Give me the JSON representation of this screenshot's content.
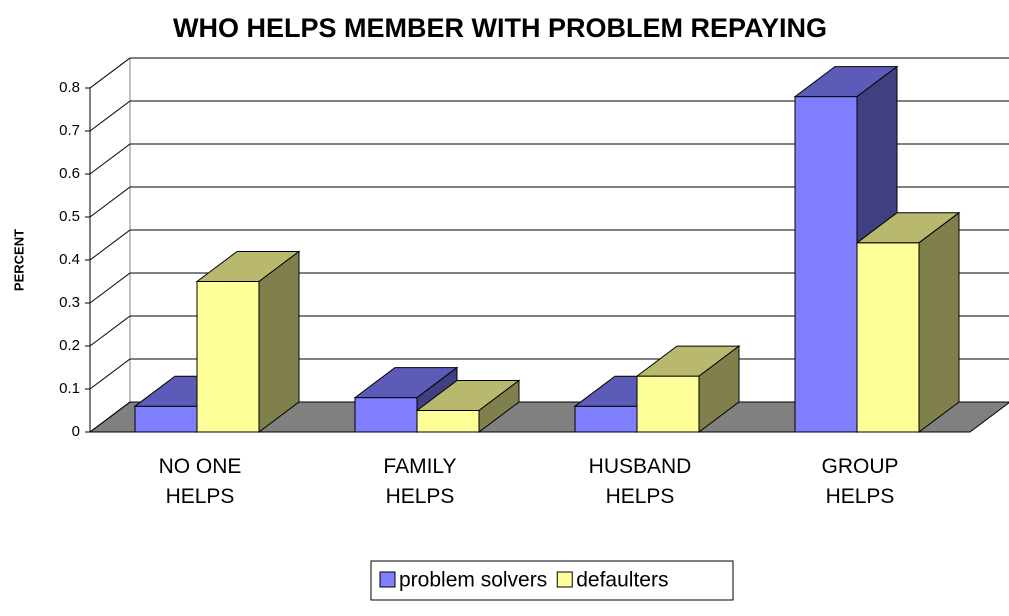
{
  "chart_data": {
    "type": "bar3d",
    "title": "WHO HELPS MEMBER WITH PROBLEM REPAYING",
    "y_label": "PERCENT",
    "categories": [
      "NO ONE HELPS",
      "FAMILY HELPS",
      "HUSBAND HELPS",
      "GROUP HELPS"
    ],
    "series": [
      {
        "name": "problem solvers",
        "color": "#8080ff",
        "values": [
          0.06,
          0.08,
          0.06,
          0.78
        ]
      },
      {
        "name": "defaulters",
        "color": "#ffff99",
        "values": [
          0.35,
          0.05,
          0.13,
          0.44
        ]
      }
    ],
    "ylim": [
      0,
      0.8
    ],
    "yticks": [
      0,
      0.1,
      0.2,
      0.3,
      0.4,
      0.5,
      0.6,
      0.7,
      0.8
    ],
    "grid": true,
    "legend": "bottom"
  }
}
